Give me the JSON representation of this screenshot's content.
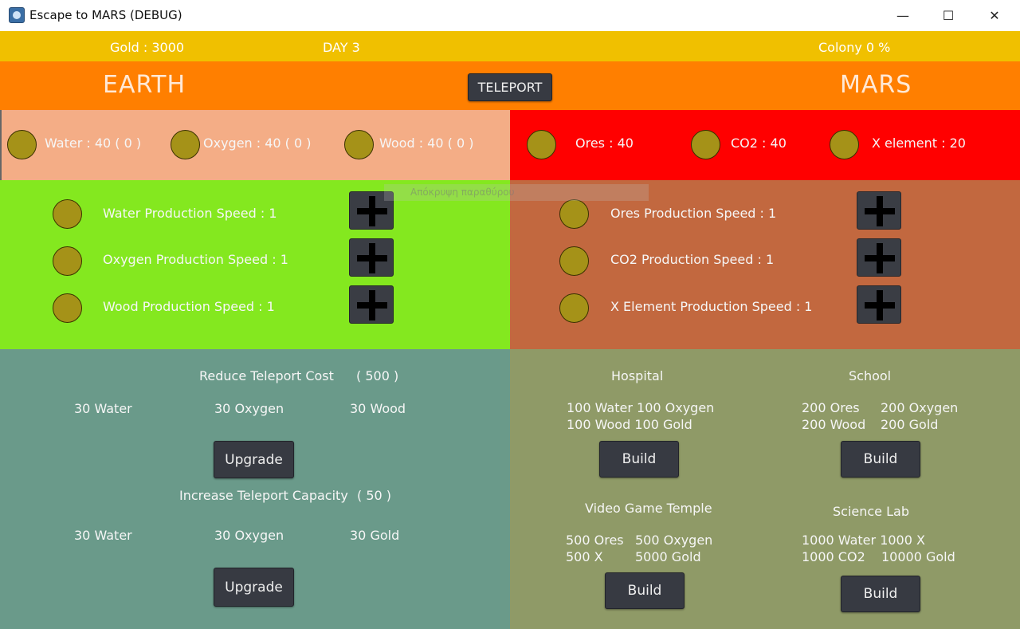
{
  "window": {
    "title": "Escape to MARS (DEBUG)",
    "minimize": "—",
    "maximize": "☐",
    "close": "✕"
  },
  "status": {
    "gold": "Gold : 3000",
    "day": "DAY 3",
    "colony": "Colony 0 %"
  },
  "header": {
    "earth": "EARTH",
    "mars": "MARS",
    "teleport": "TELEPORT"
  },
  "earth_resources": [
    "Water : 40 ( 0 )",
    "Oxygen : 40 ( 0 )",
    "Wood : 40 ( 0 )"
  ],
  "mars_resources": [
    "Ores : 40",
    "CO2 : 40",
    "X element : 20"
  ],
  "earth_production": [
    "Water Production Speed : 1",
    "Oxygen Production Speed : 1",
    "Wood Production Speed : 1"
  ],
  "mars_production": [
    "Ores Production Speed : 1",
    "CO2 Production Speed : 1",
    "X Element Production Speed : 1"
  ],
  "tooltip": "Απόκρυψη παραθύρου",
  "upgrades": {
    "reduce_title": "Reduce Teleport Cost",
    "reduce_cost": "( 500 )",
    "reduce_items": [
      "30 Water",
      "30 Oxygen",
      "30 Wood"
    ],
    "increase_title": "Increase Teleport Capacity",
    "increase_cost": "( 50 )",
    "increase_items": [
      "30 Water",
      "30 Oxygen",
      "30 Gold"
    ],
    "upgrade_label": "Upgrade"
  },
  "buildings": {
    "build_label": "Build",
    "hospital": {
      "name": "Hospital",
      "line1": "100 Water 100 Oxygen",
      "line2": "100 Wood 100 Gold"
    },
    "school": {
      "name": "School",
      "line1a": "200 Ores",
      "line1b": "200 Oxygen",
      "line2a": "200 Wood",
      "line2b": "200 Gold"
    },
    "temple": {
      "name": "Video Game Temple",
      "line1a": "500 Ores",
      "line1b": "500 Oxygen",
      "line2a": "500 X",
      "line2b": "5000 Gold"
    },
    "lab": {
      "name": "Science Lab",
      "line1": "1000 Water 1000 X",
      "line2a": "1000 CO2",
      "line2b": "10000 Gold"
    }
  },
  "colors": {
    "earth_res": "#f4ad86",
    "mars_res": "#ff0000",
    "earth_prod": "#84e81f",
    "mars_prod": "#c2683f",
    "upgrade_panel": "#6a9a8a",
    "build_panel": "#8f9a67"
  }
}
